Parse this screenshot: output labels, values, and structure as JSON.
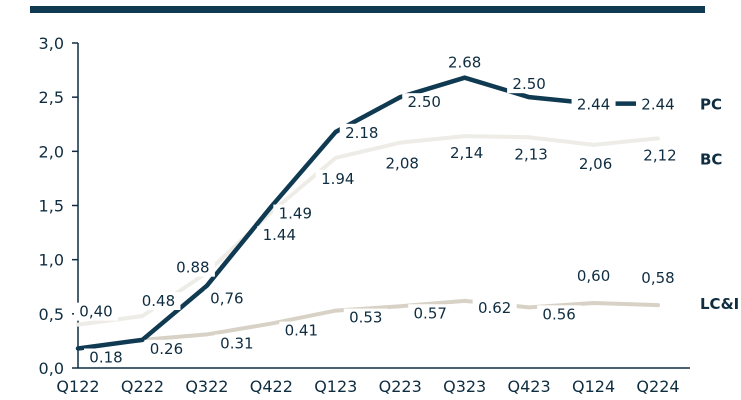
{
  "colors": {
    "pc": "#0f3a52",
    "bc": "#eeece7",
    "lci": "#d8d2c6",
    "text": "#0f2d40",
    "axis": "#0f2d40",
    "top_rule": "#0f3a52"
  },
  "chart_data": {
    "type": "line",
    "categories": [
      "Q122",
      "Q222",
      "Q322",
      "Q422",
      "Q123",
      "Q223",
      "Q323",
      "Q423",
      "Q124",
      "Q224"
    ],
    "y_ticks": [
      "0,0",
      "0,5",
      "1,0",
      "1,5",
      "2,0",
      "2,5",
      "3,0"
    ],
    "ylim": [
      0,
      3.0
    ],
    "grid": false,
    "series": [
      {
        "name": "PC",
        "values": [
          0.18,
          0.26,
          0.76,
          1.49,
          2.18,
          2.5,
          2.68,
          2.5,
          2.44,
          2.44
        ],
        "labels": [
          "",
          "",
          "0,76",
          "1.49",
          "2.18",
          "2.50",
          "2.68",
          "2.50",
          "2.44",
          "2.44"
        ]
      },
      {
        "name": "BC",
        "values": [
          0.4,
          0.48,
          0.88,
          1.44,
          1.94,
          2.08,
          2.14,
          2.13,
          2.06,
          2.12
        ],
        "labels": [
          "0,40",
          "0.48",
          "0.88",
          "1.44",
          "1.94",
          "2,08",
          "2,14",
          "2,13",
          "2,06",
          "2,12"
        ]
      },
      {
        "name": "LC&I",
        "values": [
          0.18,
          0.26,
          0.31,
          0.41,
          0.53,
          0.57,
          0.62,
          0.56,
          0.6,
          0.58
        ],
        "labels": [
          "0.18",
          "0.26",
          "0.31",
          "0.41",
          "0.53",
          "0.57",
          "0.62",
          "0.56",
          "0,60",
          "0,58"
        ]
      }
    ],
    "legend_placement": "right-end-labels"
  }
}
